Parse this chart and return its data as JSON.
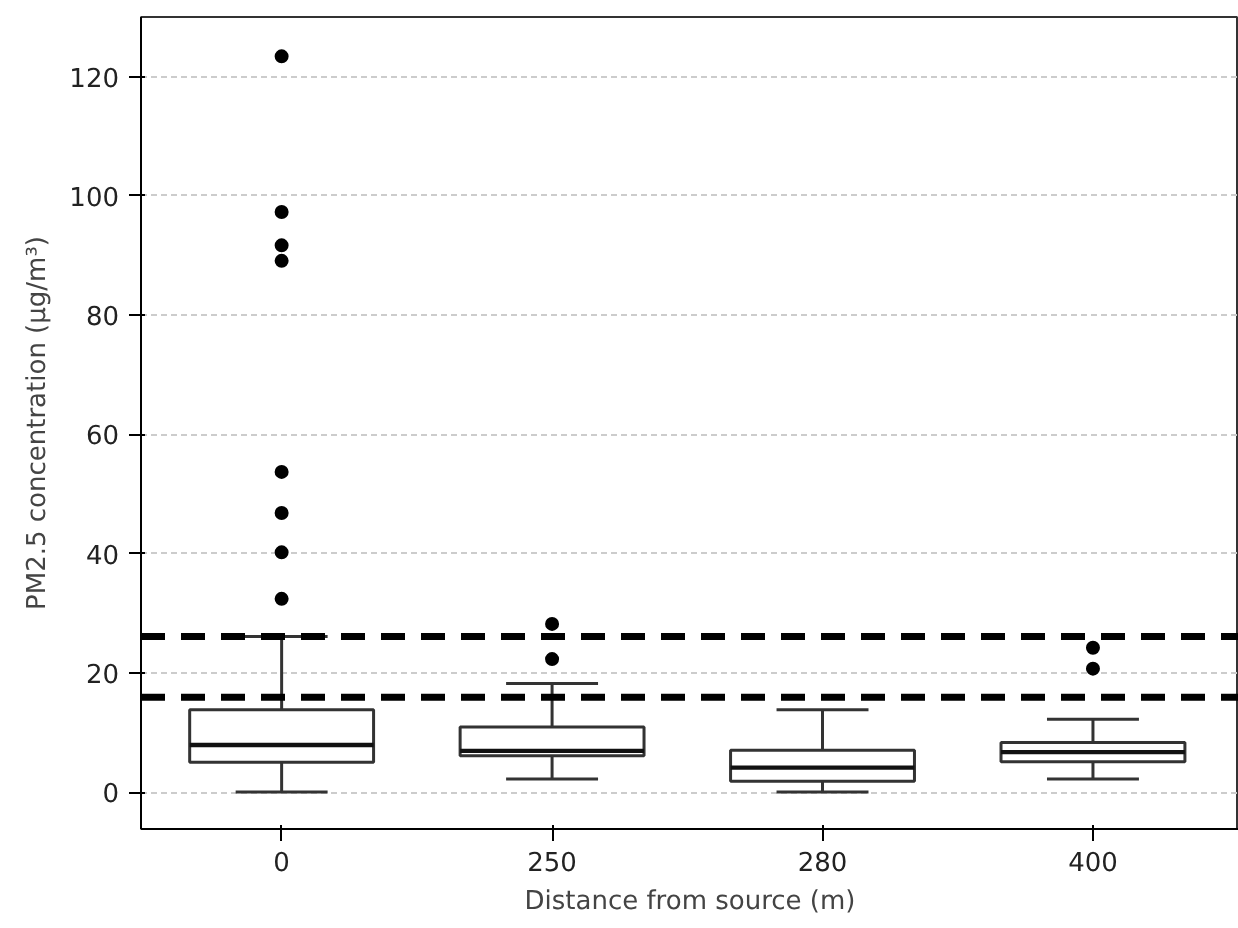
{
  "chart_data": {
    "type": "box",
    "xlabel": "Distance from source (m)",
    "ylabel": "PM2.5 concentration (µg/m³)",
    "categories": [
      "0",
      "250",
      "280",
      "400"
    ],
    "boxes": [
      {
        "low": 0,
        "q1": 5,
        "median": 7.9,
        "q3": 13.8,
        "high": 26.1,
        "outliers": [
          32.4,
          40.2,
          46.8,
          53.7,
          89.1,
          91.7,
          97.3,
          123.4
        ]
      },
      {
        "low": 2.2,
        "q1": 6.1,
        "median": 6.9,
        "q3": 10.9,
        "high": 18.2,
        "outliers": [
          22.3,
          28.2
        ]
      },
      {
        "low": 0,
        "q1": 1.8,
        "median": 4.1,
        "q3": 7.0,
        "high": 13.8
      },
      {
        "low": 2.2,
        "q1": 5.1,
        "median": 6.7,
        "q3": 8.3,
        "high": 12.2,
        "outliers": [
          20.7,
          24.2
        ]
      }
    ],
    "ylim": [
      -6.2,
      130
    ],
    "yticks": [
      0,
      20,
      40,
      60,
      80,
      100,
      120
    ],
    "grid": "y",
    "ref_lines": [
      {
        "axis": "y",
        "value": 26.1,
        "color": "#000000",
        "line_style": "dashed"
      },
      {
        "axis": "y",
        "value": 15.9,
        "color": "#000000",
        "line_style": "dashed"
      }
    ]
  }
}
